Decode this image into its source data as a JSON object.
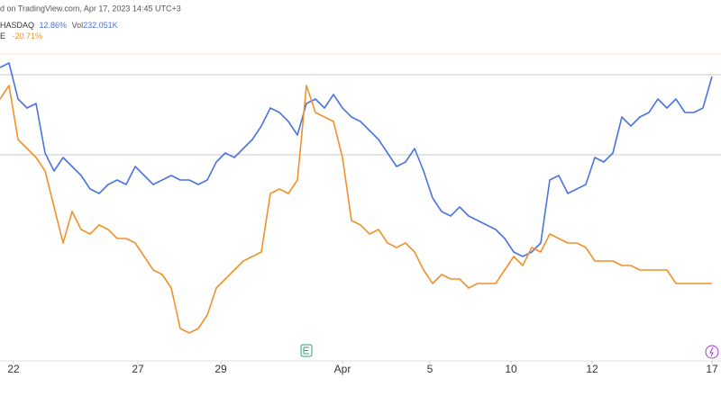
{
  "chart_data": {
    "type": "line",
    "header": "d on TradingView.com, Apr 17, 2023 14:45 UTC+3",
    "legend_rows": [
      {
        "symbol": "HASDAQ",
        "change": "12.86%",
        "vol_label": "Vol",
        "vol": "232.051K"
      },
      {
        "symbol": "E",
        "change": "-20.71%"
      }
    ],
    "x": [
      0,
      1,
      2,
      3,
      4,
      5,
      6,
      7,
      8,
      9,
      10,
      11,
      12,
      13,
      14,
      15,
      16,
      17,
      18,
      19,
      20,
      21,
      22,
      23,
      24,
      25,
      26,
      27,
      28,
      29,
      30,
      31,
      32,
      33,
      34,
      35,
      36,
      37,
      38,
      39,
      40,
      41,
      42,
      43,
      44,
      45,
      46,
      47,
      48,
      49,
      50,
      51,
      52,
      53,
      54,
      55,
      56,
      57,
      58,
      59,
      60,
      61,
      62,
      63,
      64,
      65,
      66,
      67,
      68,
      69,
      70,
      71,
      72,
      73,
      74,
      75,
      76,
      77,
      78,
      79
    ],
    "xlim": [
      0,
      79
    ],
    "xticks": [
      {
        "value": 1.5,
        "label": "22"
      },
      {
        "value": 15.3,
        "label": "27"
      },
      {
        "value": 24.5,
        "label": "29"
      },
      {
        "value": 38,
        "label": "Apr"
      },
      {
        "value": 47.7,
        "label": "5"
      },
      {
        "value": 56.7,
        "label": "10"
      },
      {
        "value": 65.7,
        "label": "12"
      },
      {
        "value": 79,
        "label": "17"
      }
    ],
    "ylim": [
      0,
      450
    ],
    "series": [
      {
        "name": "HASDAQ",
        "color": "#4a74e0",
        "values": [
          375,
          380,
          340,
          330,
          335,
          280,
          260,
          275,
          265,
          255,
          240,
          235,
          245,
          250,
          245,
          265,
          255,
          245,
          250,
          255,
          250,
          250,
          245,
          250,
          270,
          280,
          275,
          285,
          295,
          310,
          330,
          325,
          315,
          300,
          335,
          340,
          330,
          345,
          330,
          320,
          315,
          305,
          295,
          280,
          265,
          270,
          285,
          260,
          230,
          215,
          210,
          220,
          210,
          205,
          200,
          195,
          185,
          170,
          165,
          170,
          180,
          250,
          255,
          235,
          240,
          245,
          275,
          270,
          280,
          320,
          310,
          320,
          325,
          340,
          330,
          340,
          325,
          325,
          330,
          365
        ]
      },
      {
        "name": "E",
        "color": "#f0922b",
        "values": [
          340,
          355,
          295,
          285,
          275,
          260,
          220,
          180,
          215,
          195,
          190,
          200,
          195,
          185,
          185,
          180,
          165,
          150,
          145,
          130,
          85,
          80,
          85,
          100,
          130,
          140,
          150,
          160,
          165,
          170,
          235,
          240,
          235,
          250,
          355,
          325,
          320,
          315,
          275,
          205,
          200,
          190,
          195,
          180,
          175,
          180,
          170,
          150,
          135,
          145,
          140,
          140,
          130,
          135,
          135,
          135,
          150,
          165,
          155,
          175,
          170,
          190,
          185,
          180,
          180,
          175,
          160,
          160,
          160,
          155,
          155,
          150,
          150,
          150,
          150,
          135,
          135,
          135,
          135,
          135
        ]
      }
    ]
  }
}
